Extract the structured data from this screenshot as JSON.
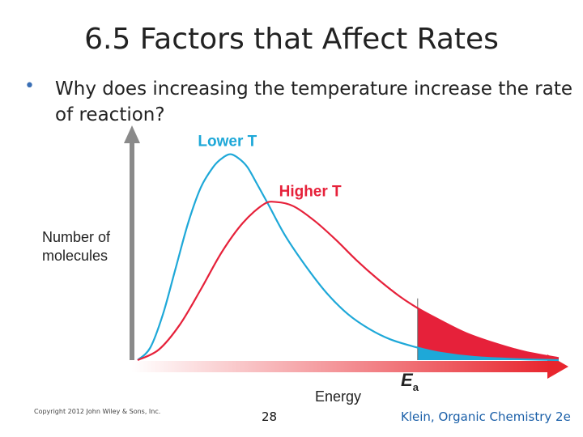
{
  "slide": {
    "title": "6.5 Factors that Affect Rates",
    "bullet": "Why does increasing the temperature increase the rate of reaction?",
    "footer_copyright": "Copyright 2012 John Wiley & Sons, Inc.",
    "page_number": "28",
    "footer_book": "Klein, Organic Chemistry 2e"
  },
  "chart_data": {
    "type": "line",
    "title": "",
    "xlabel": "Energy",
    "ylabel": "Number of molecules",
    "threshold_label": "E",
    "threshold_label_sub": "a",
    "threshold_x": 0.665,
    "xlim": [
      0,
      1
    ],
    "ylim": [
      0,
      1
    ],
    "series": [
      {
        "name": "Lower T",
        "color": "#1ea8d8",
        "points": [
          [
            0,
            0
          ],
          [
            0.03,
            0.06
          ],
          [
            0.06,
            0.22
          ],
          [
            0.09,
            0.44
          ],
          [
            0.12,
            0.66
          ],
          [
            0.15,
            0.83
          ],
          [
            0.18,
            0.93
          ],
          [
            0.2,
            0.97
          ],
          [
            0.22,
            0.99
          ],
          [
            0.24,
            0.97
          ],
          [
            0.26,
            0.93
          ],
          [
            0.28,
            0.86
          ],
          [
            0.31,
            0.75
          ],
          [
            0.35,
            0.6
          ],
          [
            0.4,
            0.45
          ],
          [
            0.45,
            0.32
          ],
          [
            0.5,
            0.22
          ],
          [
            0.55,
            0.15
          ],
          [
            0.6,
            0.1
          ],
          [
            0.665,
            0.06
          ],
          [
            0.72,
            0.035
          ],
          [
            0.8,
            0.015
          ],
          [
            0.9,
            0.005
          ],
          [
            1,
            0
          ]
        ]
      },
      {
        "name": "Higher T",
        "color": "#e6213a",
        "points": [
          [
            0,
            0
          ],
          [
            0.05,
            0.05
          ],
          [
            0.1,
            0.17
          ],
          [
            0.15,
            0.34
          ],
          [
            0.2,
            0.52
          ],
          [
            0.25,
            0.66
          ],
          [
            0.3,
            0.75
          ],
          [
            0.33,
            0.76
          ],
          [
            0.37,
            0.74
          ],
          [
            0.42,
            0.67
          ],
          [
            0.47,
            0.58
          ],
          [
            0.52,
            0.48
          ],
          [
            0.57,
            0.39
          ],
          [
            0.62,
            0.31
          ],
          [
            0.665,
            0.25
          ],
          [
            0.72,
            0.19
          ],
          [
            0.78,
            0.13
          ],
          [
            0.85,
            0.08
          ],
          [
            0.92,
            0.04
          ],
          [
            1,
            0.01
          ]
        ]
      }
    ]
  }
}
